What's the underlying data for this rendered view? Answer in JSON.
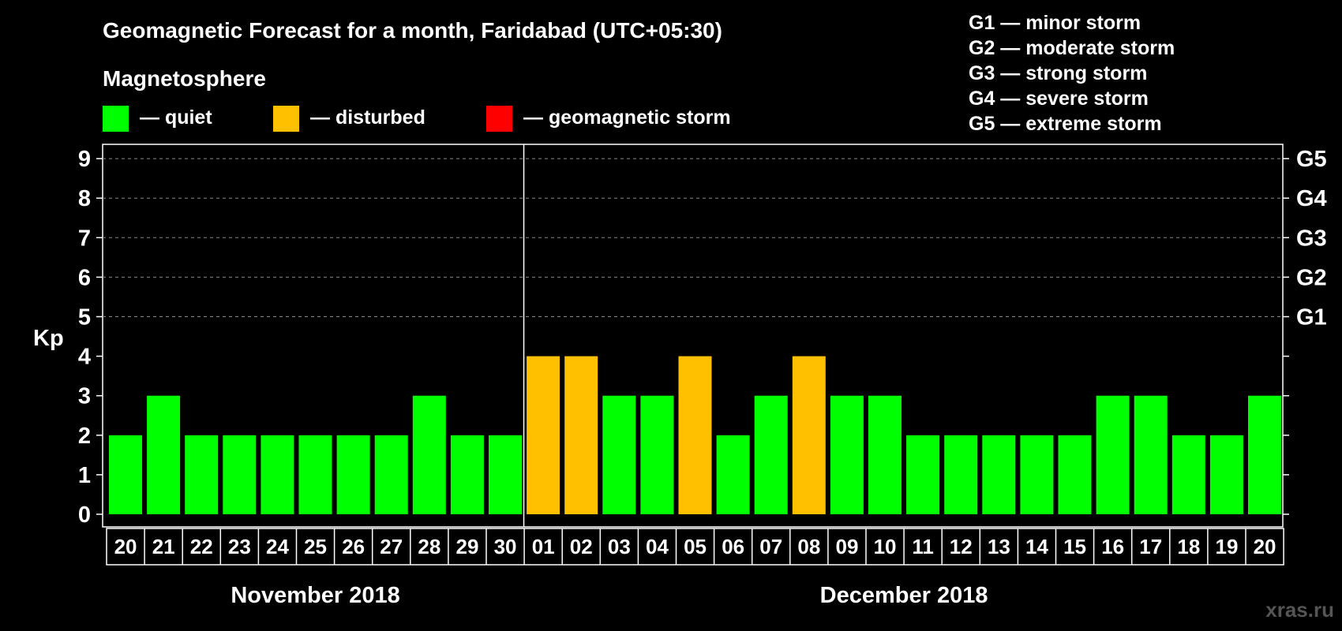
{
  "header": {
    "title": "Geomagnetic Forecast for a month, Faridabad (UTC+05:30)",
    "section_label": "Magnetosphere"
  },
  "legend": [
    {
      "key": "quiet",
      "label": "— quiet",
      "color": "#00ff00"
    },
    {
      "key": "disturbed",
      "label": "— disturbed",
      "color": "#ffc000"
    },
    {
      "key": "storm",
      "label": "— geomagnetic storm",
      "color": "#ff0000"
    }
  ],
  "storm_scale": [
    "G1 — minor storm",
    "G2 — moderate storm",
    "G3 — strong storm",
    "G4 — severe storm",
    "G5 — extreme storm"
  ],
  "watermark": "xras.ru",
  "chart_data": {
    "type": "bar",
    "title": "Geomagnetic Forecast for a month, Faridabad (UTC+05:30)",
    "ylabel": "Kp",
    "ylim": [
      0,
      9
    ],
    "yticks": [
      "0",
      "1",
      "2",
      "3",
      "4",
      "5",
      "6",
      "7",
      "8",
      "9"
    ],
    "right_axis": [
      {
        "kp": 5,
        "label": "G1"
      },
      {
        "kp": 6,
        "label": "G2"
      },
      {
        "kp": 7,
        "label": "G3"
      },
      {
        "kp": 8,
        "label": "G4"
      },
      {
        "kp": 9,
        "label": "G5"
      }
    ],
    "categories": [
      "20",
      "21",
      "22",
      "23",
      "24",
      "25",
      "26",
      "27",
      "28",
      "29",
      "30",
      "01",
      "02",
      "03",
      "04",
      "05",
      "06",
      "07",
      "08",
      "09",
      "10",
      "11",
      "12",
      "13",
      "14",
      "15",
      "16",
      "17",
      "18",
      "19",
      "20"
    ],
    "values": [
      2,
      3,
      2,
      2,
      2,
      2,
      2,
      2,
      3,
      2,
      2,
      4,
      4,
      3,
      3,
      4,
      2,
      3,
      4,
      3,
      3,
      2,
      2,
      2,
      2,
      2,
      3,
      3,
      2,
      2,
      3
    ],
    "status": [
      "quiet",
      "quiet",
      "quiet",
      "quiet",
      "quiet",
      "quiet",
      "quiet",
      "quiet",
      "quiet",
      "quiet",
      "quiet",
      "disturbed",
      "disturbed",
      "quiet",
      "quiet",
      "disturbed",
      "quiet",
      "quiet",
      "disturbed",
      "quiet",
      "quiet",
      "quiet",
      "quiet",
      "quiet",
      "quiet",
      "quiet",
      "quiet",
      "quiet",
      "quiet",
      "quiet",
      "quiet"
    ],
    "months": [
      {
        "label": "November 2018",
        "start": 0,
        "end": 10
      },
      {
        "label": "December 2018",
        "start": 11,
        "end": 30
      }
    ],
    "grid": "dashed horizontal at Kp 5–9"
  }
}
